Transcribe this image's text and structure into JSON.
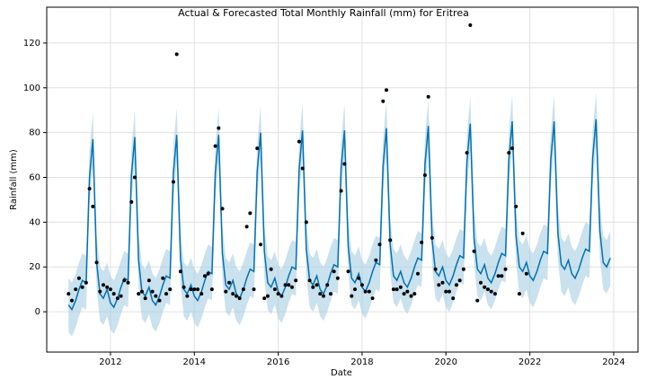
{
  "chart_data": {
    "type": "forecast",
    "title": "Actual & Forecasted Total Monthly Rainfall (mm) for Eritrea",
    "x_label": "Date",
    "y_label": "Rainfall (mm)",
    "xlim": [
      2010.48,
      2024.58
    ],
    "xticks": [
      2012,
      2014,
      2016,
      2018,
      2020,
      2022,
      2024
    ],
    "ylim": [
      -18,
      136
    ],
    "yticks": [
      0,
      20,
      40,
      60,
      80,
      100,
      120
    ],
    "grid": true,
    "x": [
      2011.0,
      2011.08,
      2011.17,
      2011.25,
      2011.33,
      2011.42,
      2011.5,
      2011.58,
      2011.67,
      2011.75,
      2011.83,
      2011.92,
      2012.0,
      2012.08,
      2012.17,
      2012.25,
      2012.33,
      2012.42,
      2012.5,
      2012.58,
      2012.67,
      2012.75,
      2012.83,
      2012.92,
      2013.0,
      2013.08,
      2013.17,
      2013.25,
      2013.33,
      2013.42,
      2013.5,
      2013.58,
      2013.67,
      2013.75,
      2013.83,
      2013.92,
      2014.0,
      2014.08,
      2014.17,
      2014.25,
      2014.33,
      2014.42,
      2014.5,
      2014.58,
      2014.67,
      2014.75,
      2014.83,
      2014.92,
      2015.0,
      2015.08,
      2015.17,
      2015.25,
      2015.33,
      2015.42,
      2015.5,
      2015.58,
      2015.67,
      2015.75,
      2015.83,
      2015.92,
      2016.0,
      2016.08,
      2016.17,
      2016.25,
      2016.33,
      2016.42,
      2016.5,
      2016.58,
      2016.67,
      2016.75,
      2016.83,
      2016.92,
      2017.0,
      2017.08,
      2017.17,
      2017.25,
      2017.33,
      2017.42,
      2017.5,
      2017.58,
      2017.67,
      2017.75,
      2017.83,
      2017.92,
      2018.0,
      2018.08,
      2018.17,
      2018.25,
      2018.33,
      2018.42,
      2018.5,
      2018.58,
      2018.67,
      2018.75,
      2018.83,
      2018.92,
      2019.0,
      2019.08,
      2019.17,
      2019.25,
      2019.33,
      2019.42,
      2019.5,
      2019.58,
      2019.67,
      2019.75,
      2019.83,
      2019.92,
      2020.0,
      2020.08,
      2020.17,
      2020.25,
      2020.33,
      2020.42,
      2020.5,
      2020.58,
      2020.67,
      2020.75,
      2020.83,
      2020.92,
      2021.0,
      2021.08,
      2021.17,
      2021.25,
      2021.33,
      2021.42,
      2021.5,
      2021.58,
      2021.67,
      2021.75,
      2021.83,
      2021.92,
      2022.0,
      2022.08,
      2022.17,
      2022.25,
      2022.33,
      2022.42,
      2022.5,
      2022.58,
      2022.67,
      2022.75,
      2022.83,
      2022.92,
      2023.0,
      2023.08,
      2023.17,
      2023.25,
      2023.33,
      2023.42,
      2023.5,
      2023.58,
      2023.67,
      2023.75,
      2023.83,
      2023.92
    ],
    "series": [
      {
        "kind": "scatter",
        "color": "#000000",
        "values": [
          8,
          5,
          10,
          15,
          11,
          13,
          55,
          47,
          22,
          9,
          12,
          11,
          10,
          8,
          6,
          7,
          14,
          13,
          49,
          60,
          8,
          9,
          6,
          14,
          9,
          7,
          5,
          15,
          8,
          10,
          58,
          115,
          18,
          11,
          7,
          10,
          10,
          10,
          8,
          16,
          17,
          10,
          74,
          82,
          46,
          9,
          13,
          8,
          7,
          6,
          10,
          38,
          44,
          10,
          73,
          30,
          6,
          7,
          19,
          10,
          8,
          7,
          12,
          12,
          11,
          14,
          76,
          64,
          40,
          14,
          11,
          12,
          8,
          7,
          12,
          8,
          18,
          15,
          54,
          66,
          18,
          7,
          10,
          15,
          12,
          9,
          9,
          6,
          23,
          30,
          94,
          99,
          32,
          10,
          10,
          11,
          8,
          9,
          7,
          8,
          17,
          31,
          61,
          96,
          33,
          19,
          12,
          13,
          9,
          9,
          6,
          12,
          14,
          19,
          71,
          128,
          27,
          5,
          13,
          11,
          10,
          9,
          8,
          16,
          16,
          19,
          71,
          73,
          47,
          8,
          35,
          17,
          null,
          null,
          null,
          null,
          null,
          null,
          null,
          null,
          null,
          null,
          null,
          null,
          null,
          null,
          null,
          null,
          null,
          null,
          null,
          null,
          null,
          null,
          null,
          null
        ]
      },
      {
        "kind": "line",
        "color": "#0072b2",
        "band_color": "#a6cde2",
        "values": [
          3,
          1,
          5,
          10,
          14,
          13,
          60,
          77,
          22,
          8,
          6,
          10,
          4,
          2,
          6,
          11,
          15,
          14,
          61,
          78,
          23,
          9,
          7,
          11,
          5,
          3,
          7,
          12,
          16,
          15,
          62,
          79,
          24,
          10,
          8,
          12,
          7,
          5,
          9,
          14,
          18,
          17,
          62,
          79,
          26,
          12,
          10,
          14,
          8,
          6,
          10,
          15,
          19,
          18,
          63,
          80,
          27,
          13,
          11,
          15,
          9,
          7,
          11,
          16,
          20,
          19,
          64,
          81,
          28,
          14,
          12,
          16,
          10,
          8,
          12,
          17,
          21,
          20,
          64,
          81,
          29,
          15,
          13,
          17,
          11,
          9,
          13,
          18,
          22,
          21,
          65,
          82,
          30,
          16,
          14,
          18,
          13,
          11,
          15,
          20,
          24,
          23,
          66,
          83,
          32,
          18,
          16,
          20,
          14,
          12,
          16,
          21,
          25,
          24,
          67,
          84,
          33,
          19,
          17,
          21,
          15,
          13,
          17,
          22,
          26,
          25,
          68,
          85,
          34,
          20,
          18,
          22,
          16,
          14,
          18,
          23,
          27,
          26,
          68,
          85,
          35,
          21,
          19,
          23,
          17,
          15,
          19,
          24,
          28,
          27,
          69,
          86,
          36,
          22,
          20,
          24
        ],
        "lower": [
          -9,
          -11,
          -7,
          -2,
          2,
          1,
          48,
          65,
          10,
          -4,
          -6,
          -2,
          -8,
          -10,
          -6,
          -1,
          3,
          2,
          49,
          66,
          11,
          -3,
          -5,
          -1,
          -7,
          -9,
          -5,
          0,
          4,
          3,
          50,
          67,
          12,
          -2,
          -4,
          0,
          -5,
          -7,
          -3,
          2,
          6,
          5,
          50,
          67,
          14,
          0,
          -2,
          2,
          -4,
          -6,
          -2,
          3,
          7,
          6,
          51,
          68,
          15,
          1,
          -1,
          3,
          -3,
          -5,
          -1,
          4,
          8,
          7,
          52,
          69,
          16,
          2,
          0,
          4,
          -2,
          -4,
          0,
          5,
          9,
          8,
          52,
          69,
          17,
          3,
          1,
          5,
          -1,
          -3,
          1,
          6,
          10,
          9,
          53,
          70,
          18,
          4,
          2,
          6,
          1,
          -1,
          3,
          8,
          12,
          11,
          54,
          71,
          20,
          6,
          4,
          8,
          2,
          0,
          4,
          9,
          13,
          12,
          55,
          72,
          21,
          7,
          5,
          9,
          3,
          1,
          5,
          10,
          14,
          13,
          56,
          73,
          22,
          8,
          6,
          10,
          4,
          2,
          6,
          11,
          15,
          14,
          56,
          73,
          23,
          9,
          7,
          11,
          5,
          3,
          7,
          12,
          16,
          15,
          57,
          74,
          24,
          10,
          8,
          12
        ],
        "upper": [
          15,
          13,
          17,
          22,
          26,
          25,
          72,
          89,
          34,
          20,
          18,
          22,
          16,
          14,
          18,
          23,
          27,
          26,
          73,
          90,
          35,
          21,
          19,
          23,
          17,
          15,
          19,
          24,
          28,
          27,
          74,
          91,
          36,
          22,
          20,
          24,
          19,
          17,
          21,
          26,
          30,
          29,
          74,
          91,
          38,
          24,
          22,
          26,
          20,
          18,
          22,
          27,
          31,
          30,
          75,
          92,
          39,
          25,
          23,
          27,
          21,
          19,
          23,
          28,
          32,
          31,
          76,
          93,
          40,
          26,
          24,
          28,
          22,
          20,
          24,
          29,
          33,
          32,
          76,
          93,
          41,
          27,
          25,
          29,
          23,
          21,
          25,
          30,
          34,
          33,
          77,
          94,
          42,
          28,
          26,
          30,
          25,
          23,
          27,
          32,
          36,
          35,
          78,
          95,
          44,
          30,
          28,
          32,
          26,
          24,
          28,
          33,
          37,
          36,
          79,
          96,
          45,
          31,
          29,
          33,
          27,
          25,
          29,
          34,
          38,
          37,
          80,
          97,
          46,
          32,
          30,
          34,
          28,
          26,
          30,
          35,
          39,
          38,
          80,
          97,
          47,
          33,
          31,
          35,
          29,
          27,
          31,
          36,
          40,
          39,
          81,
          98,
          48,
          34,
          32,
          36
        ]
      }
    ]
  }
}
